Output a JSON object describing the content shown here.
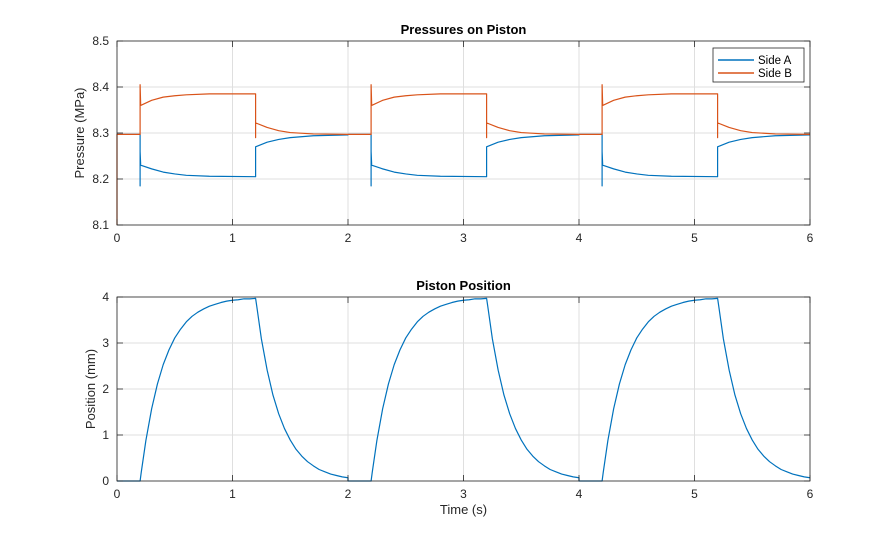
{
  "chart_data": [
    {
      "type": "line",
      "title": "Pressures on Piston",
      "xlabel": "",
      "ylabel": "Pressure (MPa)",
      "xlim": [
        0,
        6
      ],
      "ylim": [
        8.1,
        8.5
      ],
      "xticks": [
        0,
        1,
        2,
        3,
        4,
        5,
        6
      ],
      "yticks": [
        8.1,
        8.2,
        8.3,
        8.4,
        8.5
      ],
      "grid": true,
      "legend_position": "top-right",
      "period": 2,
      "cycles": 3,
      "series": [
        {
          "name": "Side A",
          "color": "#0072BD",
          "initial": [],
          "cycle_points": [
            [
              0,
              8.297
            ],
            [
              0.2,
              8.297
            ],
            [
              0.2,
              8.185
            ],
            [
              0.2,
              8.26
            ],
            [
              0.205,
              8.23
            ],
            [
              0.3,
              8.222
            ],
            [
              0.4,
              8.215
            ],
            [
              0.5,
              8.211
            ],
            [
              0.6,
              8.208
            ],
            [
              0.8,
              8.206
            ],
            [
              1.2,
              8.205
            ],
            [
              1.2,
              8.27
            ],
            [
              1.3,
              8.28
            ],
            [
              1.4,
              8.286
            ],
            [
              1.5,
              8.29
            ],
            [
              1.7,
              8.294
            ],
            [
              2.0,
              8.296
            ]
          ]
        },
        {
          "name": "Side B",
          "color": "#D95319",
          "initial": [
            [
              0,
              8.1
            ]
          ],
          "cycle_points": [
            [
              0,
              8.297
            ],
            [
              0.2,
              8.297
            ],
            [
              0.2,
              8.405
            ],
            [
              0.205,
              8.36
            ],
            [
              0.3,
              8.371
            ],
            [
              0.4,
              8.378
            ],
            [
              0.5,
              8.381
            ],
            [
              0.6,
              8.383
            ],
            [
              0.8,
              8.385
            ],
            [
              1.2,
              8.385
            ],
            [
              1.2,
              8.29
            ],
            [
              1.2,
              8.322
            ],
            [
              1.3,
              8.312
            ],
            [
              1.4,
              8.305
            ],
            [
              1.5,
              8.301
            ],
            [
              1.7,
              8.298
            ],
            [
              2.0,
              8.297
            ]
          ]
        }
      ]
    },
    {
      "type": "line",
      "title": "Piston Position",
      "xlabel": "Time (s)",
      "ylabel": "Position (mm)",
      "xlim": [
        0,
        6
      ],
      "ylim": [
        0,
        4
      ],
      "xticks": [
        0,
        1,
        2,
        3,
        4,
        5,
        6
      ],
      "yticks": [
        0,
        1,
        2,
        3,
        4
      ],
      "grid": true,
      "period": 2,
      "cycles": 3,
      "series": [
        {
          "name": "Position",
          "color": "#0072BD",
          "initial": [],
          "cycle_points": [
            [
              0,
              0
            ],
            [
              0.2,
              0
            ],
            [
              0.21,
              0.19
            ],
            [
              0.25,
              0.88
            ],
            [
              0.3,
              1.57
            ],
            [
              0.35,
              2.11
            ],
            [
              0.4,
              2.53
            ],
            [
              0.45,
              2.85
            ],
            [
              0.5,
              3.11
            ],
            [
              0.55,
              3.3
            ],
            [
              0.6,
              3.46
            ],
            [
              0.65,
              3.58
            ],
            [
              0.7,
              3.67
            ],
            [
              0.75,
              3.74
            ],
            [
              0.8,
              3.8
            ],
            [
              0.85,
              3.84
            ],
            [
              0.9,
              3.88
            ],
            [
              0.95,
              3.91
            ],
            [
              1.0,
              3.93
            ],
            [
              1.05,
              3.94
            ],
            [
              1.1,
              3.96
            ],
            [
              1.15,
              3.96
            ],
            [
              1.2,
              3.97
            ],
            [
              1.21,
              3.8
            ],
            [
              1.25,
              3.09
            ],
            [
              1.3,
              2.41
            ],
            [
              1.35,
              1.87
            ],
            [
              1.4,
              1.46
            ],
            [
              1.45,
              1.14
            ],
            [
              1.5,
              0.89
            ],
            [
              1.55,
              0.69
            ],
            [
              1.6,
              0.54
            ],
            [
              1.65,
              0.42
            ],
            [
              1.7,
              0.33
            ],
            [
              1.75,
              0.25
            ],
            [
              1.8,
              0.2
            ],
            [
              1.85,
              0.15
            ],
            [
              1.9,
              0.12
            ],
            [
              1.95,
              0.09
            ],
            [
              2.0,
              0.07
            ]
          ]
        }
      ]
    }
  ]
}
